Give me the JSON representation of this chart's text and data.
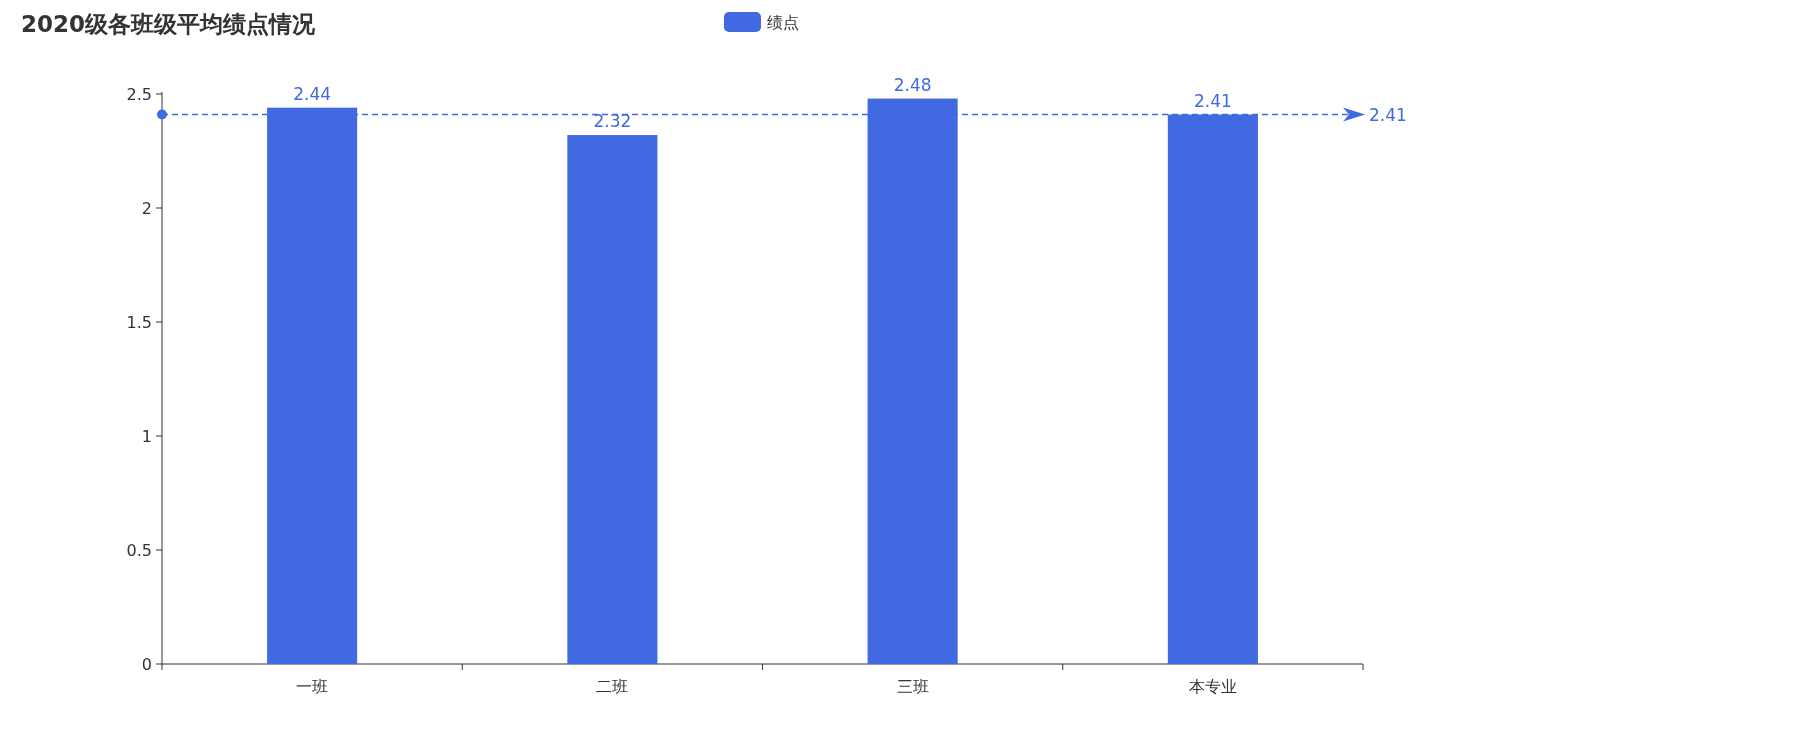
{
  "chart_data": {
    "type": "bar",
    "title": "2020级各班级平均绩点情况",
    "legend": "top",
    "categories": [
      "一班",
      "二班",
      "三班",
      "本专业"
    ],
    "series": [
      {
        "name": "绩点",
        "color": "#4169e1",
        "values": [
          2.44,
          2.32,
          2.48,
          2.41
        ]
      }
    ],
    "ylim": [
      0,
      2.5
    ],
    "yticks": [
      0,
      0.5,
      1,
      1.5,
      2,
      2.5
    ],
    "data_labels": true,
    "ref_lines": [
      {
        "axis": "y",
        "value": 2.41,
        "label": "2.41",
        "color": "#4169e1",
        "line_style": "dashed"
      }
    ]
  }
}
